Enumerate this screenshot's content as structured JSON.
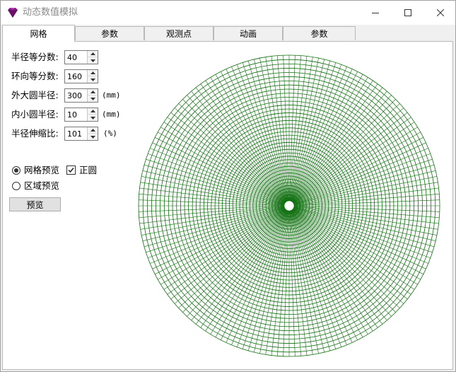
{
  "window": {
    "title": "动态数值模拟"
  },
  "tabs": [
    {
      "label": "网格",
      "active": true
    },
    {
      "label": "参数",
      "active": false
    },
    {
      "label": "观测点",
      "active": false
    },
    {
      "label": "动画",
      "active": false
    },
    {
      "label": "参数",
      "active": false
    }
  ],
  "fields": [
    {
      "label": "半径等分数:",
      "value": "40",
      "unit": ""
    },
    {
      "label": "环向等分数:",
      "value": "160",
      "unit": ""
    },
    {
      "label": "外大圆半径:",
      "value": "300",
      "unit": "(mm)"
    },
    {
      "label": "内小圆半径:",
      "value": "10",
      "unit": "(mm)"
    },
    {
      "label": "半径伸缩比:",
      "value": "101",
      "unit": "(%)"
    }
  ],
  "options": {
    "grid_preview": {
      "label": "网格预览",
      "checked": true
    },
    "area_preview": {
      "label": "区域预览",
      "checked": false
    },
    "perfect_circle": {
      "label": "正圆",
      "checked": true
    }
  },
  "preview_button": {
    "label": "预览"
  },
  "grid": {
    "radial_divisions": 40,
    "circumferential_divisions": 160,
    "outer_radius": 300,
    "inner_radius": 10,
    "radial_stretch_percent": 101,
    "line_color": "#107010"
  },
  "icons": {
    "app": "purple-gem-icon",
    "minimize": "minimize-icon",
    "maximize": "maximize-icon",
    "close": "close-icon"
  }
}
